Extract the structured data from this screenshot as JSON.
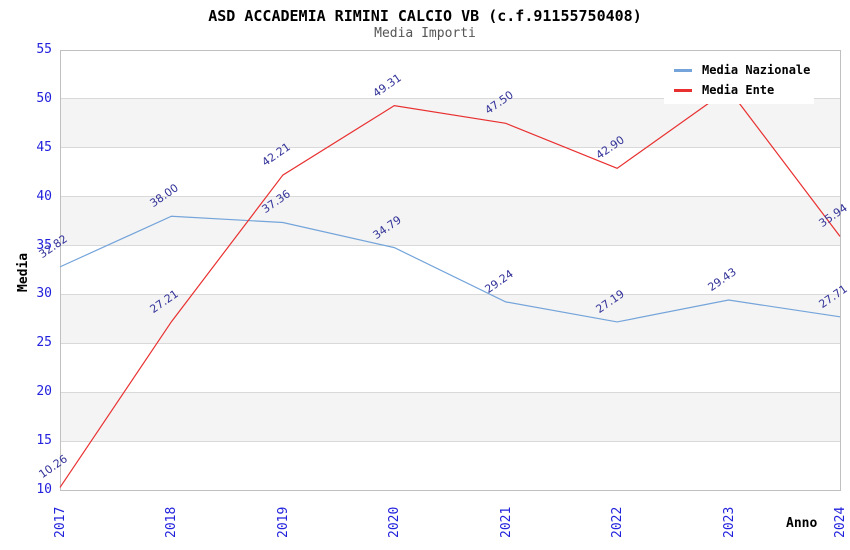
{
  "header": {
    "title": "ASD ACCADEMIA RIMINI CALCIO VB (c.f.91155750408)",
    "subtitle": "Media Importi"
  },
  "chart_data": {
    "type": "line",
    "x_categories": [
      "2017",
      "2018",
      "2019",
      "2020",
      "2021",
      "2022",
      "2023",
      "2024"
    ],
    "xlabel": "Anno",
    "ylabel": "Media",
    "ylim": [
      10,
      55
    ],
    "ytick_step": 5,
    "grid": true,
    "band_shading": true,
    "legend_position": "top-right",
    "series": [
      {
        "name": "Media Nazionale",
        "color": "#74a4da",
        "values": [
          32.82,
          38.0,
          37.36,
          34.79,
          29.24,
          27.19,
          29.43,
          27.71
        ],
        "point_labels": [
          "32.82",
          "38.00",
          "37.36",
          "34.79",
          "29.24",
          "27.19",
          "29.43",
          "27.71"
        ]
      },
      {
        "name": "Media Ente",
        "color": "#e93030",
        "values": [
          10.26,
          27.21,
          42.21,
          49.31,
          47.5,
          42.9,
          51.0,
          35.94
        ],
        "point_labels": [
          "10.26",
          "27.21",
          "42.21",
          "49.31",
          "47.50",
          "42.90",
          "",
          "35.94"
        ]
      }
    ]
  },
  "colors": {
    "axis_tick_text": "#2222dd",
    "point_label_text": "#333399",
    "band_fill": "#f4f4f4",
    "gridline": "#d9d9d9",
    "plot_border": "#c0c0c0",
    "background": "#ffffff"
  }
}
